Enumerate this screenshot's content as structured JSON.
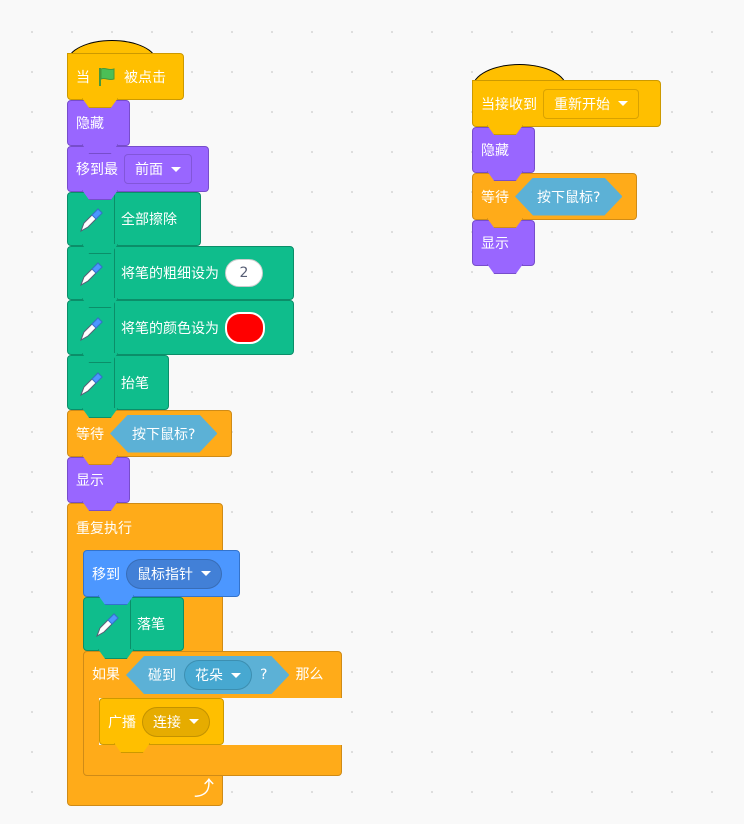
{
  "colors": {
    "events": "#FFBF00",
    "looks": "#9966FF",
    "pen": "#0FBD8C",
    "control": "#FFAB19",
    "motion": "#4C97FF",
    "sensing": "#5CB1D6",
    "pen_color_value": "#FF0000"
  },
  "script1": {
    "hat": {
      "pre": "当",
      "icon": "green-flag-icon",
      "post": "被点击"
    },
    "hide": "隐藏",
    "goto_layer": {
      "label": "移到最",
      "option": "前面"
    },
    "clear": "全部擦除",
    "set_size": {
      "label": "将笔的粗细设为",
      "value": "2"
    },
    "set_color": {
      "label": "将笔的颜色设为"
    },
    "pen_up": "抬笔",
    "wait": {
      "label": "等待",
      "condition": "按下鼠标?"
    },
    "show": "显示",
    "forever": {
      "label": "重复执行",
      "icon": "loop-arrow-icon"
    },
    "goto": {
      "label": "移到",
      "option": "鼠标指针"
    },
    "pen_down": "落笔",
    "if": {
      "label": "如果",
      "sense": "碰到",
      "option": "花朵",
      "q": "?",
      "then": "那么"
    },
    "broadcast": {
      "label": "广播",
      "option": "连接"
    }
  },
  "script2": {
    "hat": {
      "label": "当接收到",
      "option": "重新开始"
    },
    "hide": "隐藏",
    "wait": {
      "label": "等待",
      "condition": "按下鼠标?"
    },
    "show": "显示"
  }
}
